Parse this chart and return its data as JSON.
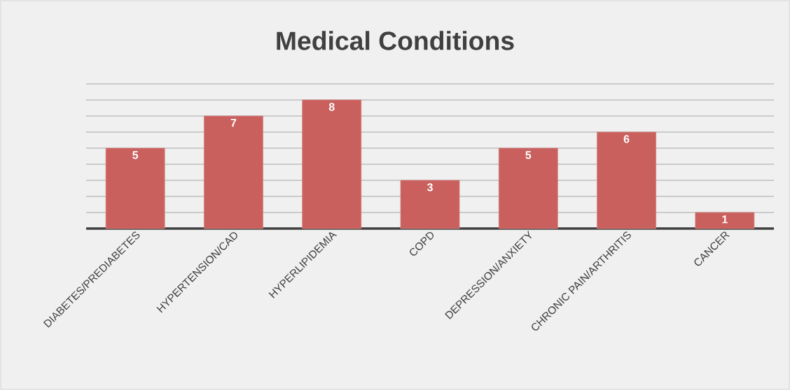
{
  "chart_data": {
    "type": "bar",
    "title": "Medical Conditions",
    "categories": [
      "DIABETES/PREDIABETES",
      "HYPERTENSION/CAD",
      "HYPERLIPIDEMIA",
      "COPD",
      "DEPRESSION/ANXIETY",
      "CHRONIC PAIN/ARTHRITIS",
      "CANCER"
    ],
    "values": [
      5,
      7,
      8,
      3,
      5,
      6,
      1
    ],
    "color": "#c9605e",
    "ylim": [
      0,
      9
    ],
    "yticks": [
      {
        "value": 0,
        "label": null
      },
      {
        "value": 1,
        "label": null
      },
      {
        "value": 2,
        "label": null
      },
      {
        "value": 3,
        "label": null
      },
      {
        "value": 4,
        "label": null
      },
      {
        "value": 5,
        "label": null
      },
      {
        "value": 6,
        "label": null
      },
      {
        "value": 7,
        "label": null
      },
      {
        "value": 8,
        "label": null
      },
      {
        "value": 9,
        "label": null
      }
    ],
    "grid": "y",
    "data_labels": true,
    "tick_labels": "x"
  }
}
